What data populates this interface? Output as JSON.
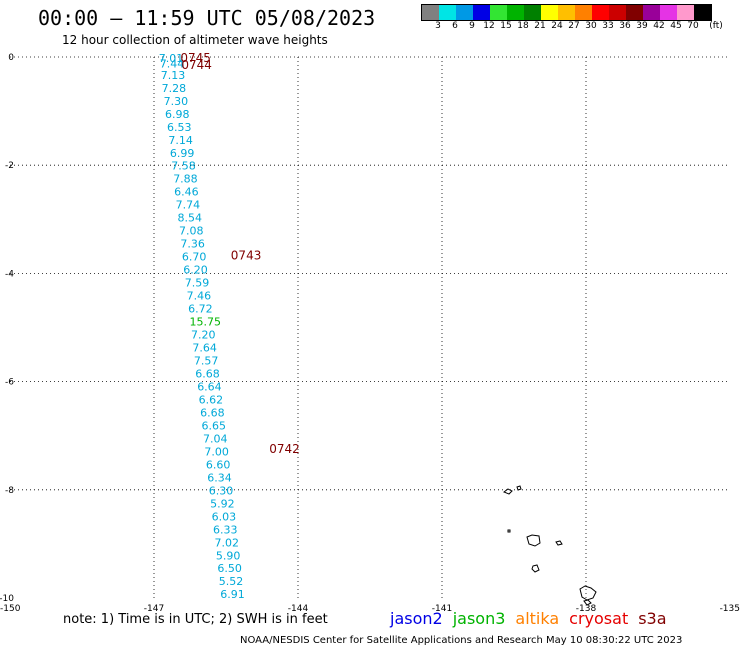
{
  "header": {
    "title": "00:00 – 11:59 UTC 05/08/2023",
    "subtitle": "12 hour collection of altimeter wave heights"
  },
  "legend": {
    "colors": [
      "#808080",
      "#00e5e5",
      "#0099e5",
      "#0000e5",
      "#33e533",
      "#00b300",
      "#008000",
      "#ffff00",
      "#ffbf00",
      "#ff8000",
      "#ff0000",
      "#cc0000",
      "#800000",
      "#990099",
      "#e533e5",
      "#ff99cc",
      "#000000"
    ],
    "labels": [
      "3",
      "6",
      "9",
      "12",
      "15",
      "18",
      "21",
      "24",
      "27",
      "30",
      "33",
      "36",
      "39",
      "42",
      "45",
      "70",
      "(ft)"
    ]
  },
  "chart_data": {
    "type": "scatter",
    "xlim": [
      -150,
      -135
    ],
    "ylim": [
      -10,
      0
    ],
    "x_ticks": [
      "-150",
      "-147",
      "-144",
      "-141",
      "-138",
      "-135"
    ],
    "y_ticks": [
      "0",
      "-2",
      "-4",
      "-6",
      "-8",
      "-10"
    ],
    "obs_color": "#00a8d8",
    "highlight_color": "#00b300",
    "time_color": "#800000",
    "observations": [
      {
        "lon": -146.9,
        "lat": -0.02,
        "v": "7.01"
      },
      {
        "lon": -146.88,
        "lat": -0.12,
        "v": "7.44"
      },
      {
        "lon": -146.86,
        "lat": -0.33,
        "v": "7.13"
      },
      {
        "lon": -146.84,
        "lat": -0.57,
        "v": "7.28"
      },
      {
        "lon": -146.8,
        "lat": -0.81,
        "v": "7.30"
      },
      {
        "lon": -146.77,
        "lat": -1.05,
        "v": "6.98"
      },
      {
        "lon": -146.73,
        "lat": -1.29,
        "v": "6.53"
      },
      {
        "lon": -146.7,
        "lat": -1.53,
        "v": "7.14"
      },
      {
        "lon": -146.67,
        "lat": -1.77,
        "v": "6.99"
      },
      {
        "lon": -146.64,
        "lat": -2.01,
        "v": "7.58"
      },
      {
        "lon": -146.6,
        "lat": -2.25,
        "v": "7.88"
      },
      {
        "lon": -146.58,
        "lat": -2.49,
        "v": "6.46"
      },
      {
        "lon": -146.55,
        "lat": -2.73,
        "v": "7.74"
      },
      {
        "lon": -146.51,
        "lat": -2.97,
        "v": "8.54"
      },
      {
        "lon": -146.48,
        "lat": -3.21,
        "v": "7.08"
      },
      {
        "lon": -146.45,
        "lat": -3.45,
        "v": "7.36"
      },
      {
        "lon": -146.42,
        "lat": -3.69,
        "v": "6.70"
      },
      {
        "lon": -146.39,
        "lat": -3.93,
        "v": "6.20"
      },
      {
        "lon": -146.36,
        "lat": -4.17,
        "v": "7.59"
      },
      {
        "lon": -146.32,
        "lat": -4.41,
        "v": "7.46"
      },
      {
        "lon": -146.29,
        "lat": -4.65,
        "v": "6.72"
      },
      {
        "lon": -146.26,
        "lat": -4.89,
        "v": "15.75",
        "hl": true
      },
      {
        "lon": -146.23,
        "lat": -5.13,
        "v": "7.20"
      },
      {
        "lon": -146.2,
        "lat": -5.37,
        "v": "7.64"
      },
      {
        "lon": -146.17,
        "lat": -5.61,
        "v": "7.57"
      },
      {
        "lon": -146.14,
        "lat": -5.85,
        "v": "6.68"
      },
      {
        "lon": -146.1,
        "lat": -6.09,
        "v": "6.64"
      },
      {
        "lon": -146.07,
        "lat": -6.33,
        "v": "6.62"
      },
      {
        "lon": -146.04,
        "lat": -6.57,
        "v": "6.68"
      },
      {
        "lon": -146.01,
        "lat": -6.81,
        "v": "6.65"
      },
      {
        "lon": -145.98,
        "lat": -7.05,
        "v": "7.04"
      },
      {
        "lon": -145.95,
        "lat": -7.29,
        "v": "7.00"
      },
      {
        "lon": -145.92,
        "lat": -7.53,
        "v": "6.60"
      },
      {
        "lon": -145.89,
        "lat": -7.77,
        "v": "6.34"
      },
      {
        "lon": -145.86,
        "lat": -8.01,
        "v": "6.30"
      },
      {
        "lon": -145.83,
        "lat": -8.25,
        "v": "5.92"
      },
      {
        "lon": -145.8,
        "lat": -8.49,
        "v": "6.03"
      },
      {
        "lon": -145.77,
        "lat": -8.73,
        "v": "6.33"
      },
      {
        "lon": -145.74,
        "lat": -8.97,
        "v": "7.02"
      },
      {
        "lon": -145.71,
        "lat": -9.21,
        "v": "5.90"
      },
      {
        "lon": -145.68,
        "lat": -9.45,
        "v": "6.50"
      },
      {
        "lon": -145.65,
        "lat": -9.69,
        "v": "5.52"
      },
      {
        "lon": -145.62,
        "lat": -9.93,
        "v": "6.91"
      }
    ],
    "times": [
      {
        "lon": -146.45,
        "lat": -0.02,
        "v": "0745"
      },
      {
        "lon": -146.43,
        "lat": -0.15,
        "v": "0744"
      },
      {
        "lon": -145.4,
        "lat": -3.67,
        "v": "0743"
      },
      {
        "lon": -144.6,
        "lat": -7.25,
        "v": "0742"
      }
    ]
  },
  "note": "note:  1) Time is in UTC; 2) SWH is in feet",
  "satellites": [
    {
      "name": "jason2",
      "color": "#0000e5"
    },
    {
      "name": "jason3",
      "color": "#00b300"
    },
    {
      "name": "altika",
      "color": "#ff8000"
    },
    {
      "name": "cryosat",
      "color": "#e50000"
    },
    {
      "name": "s3a",
      "color": "#800000"
    }
  ],
  "credit": "NOAA/NESDIS Center for Satellite Applications and Research    May 10 08:30:22 UTC 2023"
}
